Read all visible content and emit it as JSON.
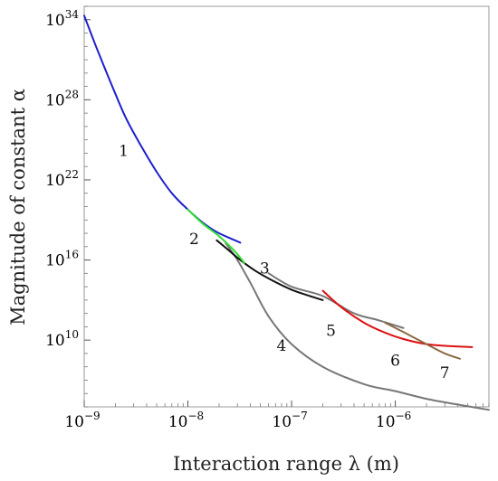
{
  "chart_data": {
    "type": "line",
    "title": "",
    "xlabel": "Interaction range λ (m)",
    "ylabel": "Magnitude of constant α",
    "x_scale": "log",
    "y_scale": "log",
    "xlim": [
      1e-09,
      8e-06
    ],
    "ylim": [
      100000.0,
      1e+35
    ],
    "x_ticks": [
      {
        "base": "10",
        "exp": "−9",
        "value": 1e-09
      },
      {
        "base": "10",
        "exp": "−8",
        "value": 1e-08
      },
      {
        "base": "10",
        "exp": "−7",
        "value": 1e-07
      },
      {
        "base": "10",
        "exp": "−6",
        "value": 1e-06
      }
    ],
    "y_ticks": [
      {
        "base": "10",
        "exp": "34",
        "value": 1e+34
      },
      {
        "base": "10",
        "exp": "28",
        "value": 1e+28
      },
      {
        "base": "10",
        "exp": "22",
        "value": 1e+22
      },
      {
        "base": "10",
        "exp": "16",
        "value": 1e+16
      },
      {
        "base": "10",
        "exp": "10",
        "value": 10000000000.0
      }
    ],
    "grid": false,
    "series": [
      {
        "label": "1",
        "color": "#1f1fcc",
        "label_x": 2.4e-09,
        "label_y": 6e+23,
        "x": [
          1e-09,
          1.3e-09,
          1.8e-09,
          2.5e-09,
          3.5e-09,
          5e-09,
          7e-09,
          1e-08,
          1.5e-08,
          2e-08,
          3.2e-08
        ],
        "y": [
          2e+34,
          1e+32,
          2e+29,
          5e+26,
          4e+24,
          4e+22,
          1e+21,
          6e+19,
          4e+18,
          1e+18,
          2e+17
        ]
      },
      {
        "label": "2",
        "color": "#33dd33",
        "label_x": 1.15e-08,
        "label_y": 1.5e+17,
        "x": [
          1e-08,
          1.4e-08,
          2e-08,
          2.8e-08,
          3.5e-08
        ],
        "y": [
          6e+19,
          5e+18,
          6e+17,
          5e+16,
          6000000000000000.0
        ]
      },
      {
        "label": "3",
        "color": "#111111",
        "label_x": 5.5e-08,
        "label_y": 1000000000000000.0,
        "x": [
          1.9e-08,
          2.5e-08,
          3.2e-08,
          4.5e-08,
          6.5e-08,
          1e-07,
          1.5e-07,
          2e-07
        ],
        "y": [
          3e+17,
          5e+16,
          1e+16,
          1500000000000000.0,
          300000000000000.0,
          60000000000000.0,
          20000000000000.0,
          10000000000000.0
        ]
      },
      {
        "label": "4",
        "color": "#777777",
        "label_x": 8e-08,
        "label_y": 1600000000.0,
        "x": [
          2.3e-08,
          3e-08,
          4e-08,
          6e-08,
          1e-07,
          2e-07,
          5e-07,
          1e-06,
          2e-06,
          4e-06,
          8e-06
        ],
        "y": [
          2e+17,
          1e+16,
          200000000000000.0,
          600000000000.0,
          5000000000.0,
          100000000.0,
          5000000.0,
          1500000.0,
          400000.0,
          150000.0,
          60000.0
        ]
      },
      {
        "label": "5",
        "color": "#777777",
        "label_x": 2.4e-07,
        "label_y": 20000000000.0,
        "x": [
          6e-08,
          1e-07,
          2e-07,
          4e-07,
          7e-07,
          1.2e-06
        ],
        "y": [
          1000000000000000.0,
          100000000000000.0,
          20000000000000.0,
          1000000000000.0,
          300000000000.0,
          80000000000.0
        ]
      },
      {
        "label": "6",
        "color": "#dd1111",
        "label_x": 1e-06,
        "label_y": 120000000.0,
        "x": [
          2e-07,
          3e-07,
          5e-07,
          8e-07,
          1.2e-06,
          2e-06,
          3.5e-06,
          5.5e-06
        ],
        "y": [
          50000000000000.0,
          3000000000000.0,
          200000000000.0,
          35000000000.0,
          12000000000.0,
          5000000000.0,
          3500000000.0,
          3000000000.0
        ]
      },
      {
        "label": "7",
        "color": "#8a6a44",
        "label_x": 3e-06,
        "label_y": 15000000.0,
        "x": [
          8e-07,
          1.2e-06,
          2e-06,
          3e-06,
          4.2e-06
        ],
        "y": [
          200000000000.0,
          40000000000.0,
          5000000000.0,
          1000000000.0,
          400000000.0
        ]
      }
    ]
  }
}
